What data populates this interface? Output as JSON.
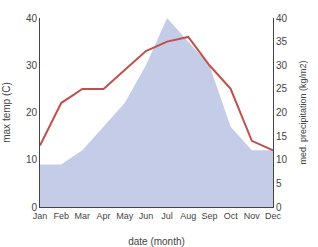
{
  "chart_data": {
    "type": "line",
    "categories": [
      "Jan",
      "Feb",
      "Mar",
      "Apr",
      "May",
      "Jun",
      "Jul",
      "Aug",
      "Sep",
      "Oct",
      "Nov",
      "Dec"
    ],
    "series": [
      {
        "type": "area",
        "color": "#c5cce8",
        "values": [
          9,
          9,
          12,
          17,
          22,
          30,
          40,
          35,
          30,
          17,
          12,
          12
        ]
      },
      {
        "type": "line",
        "color": "#c0504d",
        "axis": "y2",
        "values": [
          13,
          22,
          25,
          25,
          29,
          33,
          35,
          36,
          30,
          25,
          14,
          12
        ]
      }
    ],
    "xlabel": "date (month)",
    "ylabel": "max temp (C)",
    "y2label": "med. precipitation (kg/m2)",
    "ylim": [
      0,
      40
    ],
    "yticks": [
      0,
      10,
      20,
      30,
      40
    ],
    "y2lim": [
      0,
      40
    ],
    "y2ticks": [
      0,
      5,
      10,
      15,
      20,
      25,
      30,
      35,
      40
    ],
    "grid": false
  }
}
